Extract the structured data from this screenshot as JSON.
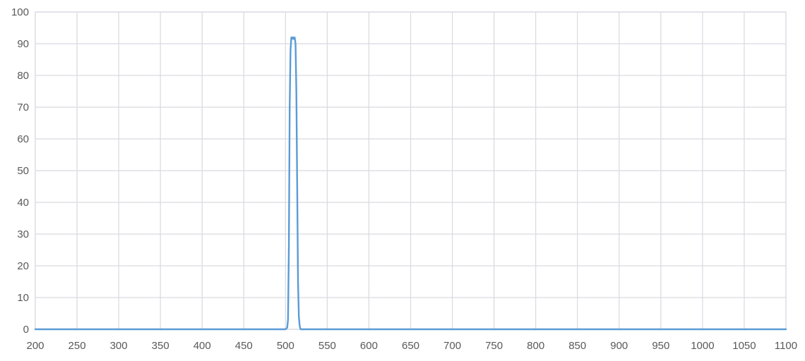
{
  "chart_data": {
    "type": "line",
    "title": "",
    "xlabel": "",
    "ylabel": "",
    "xlim": [
      200,
      1100
    ],
    "ylim": [
      0,
      100
    ],
    "x_ticks": [
      200,
      250,
      300,
      350,
      400,
      450,
      500,
      550,
      600,
      650,
      700,
      750,
      800,
      850,
      900,
      950,
      1000,
      1050,
      1100
    ],
    "y_ticks": [
      0,
      10,
      20,
      30,
      40,
      50,
      60,
      70,
      80,
      90,
      100
    ],
    "grid": true,
    "legend": "none",
    "colors": {
      "series": "#5b9bd5",
      "grid": "#d9d9e0",
      "text": "#595959"
    },
    "series": [
      {
        "x": [
          200,
          500,
          502,
          503,
          504,
          505,
          506,
          507,
          508,
          509,
          510,
          511,
          512,
          513,
          514,
          515,
          516,
          517,
          518,
          520,
          1100
        ],
        "y": [
          0,
          0,
          0.5,
          3,
          25,
          70,
          88,
          92,
          91.5,
          92,
          91.5,
          92,
          90,
          75,
          45,
          15,
          4,
          1,
          0,
          0,
          0
        ]
      }
    ]
  }
}
